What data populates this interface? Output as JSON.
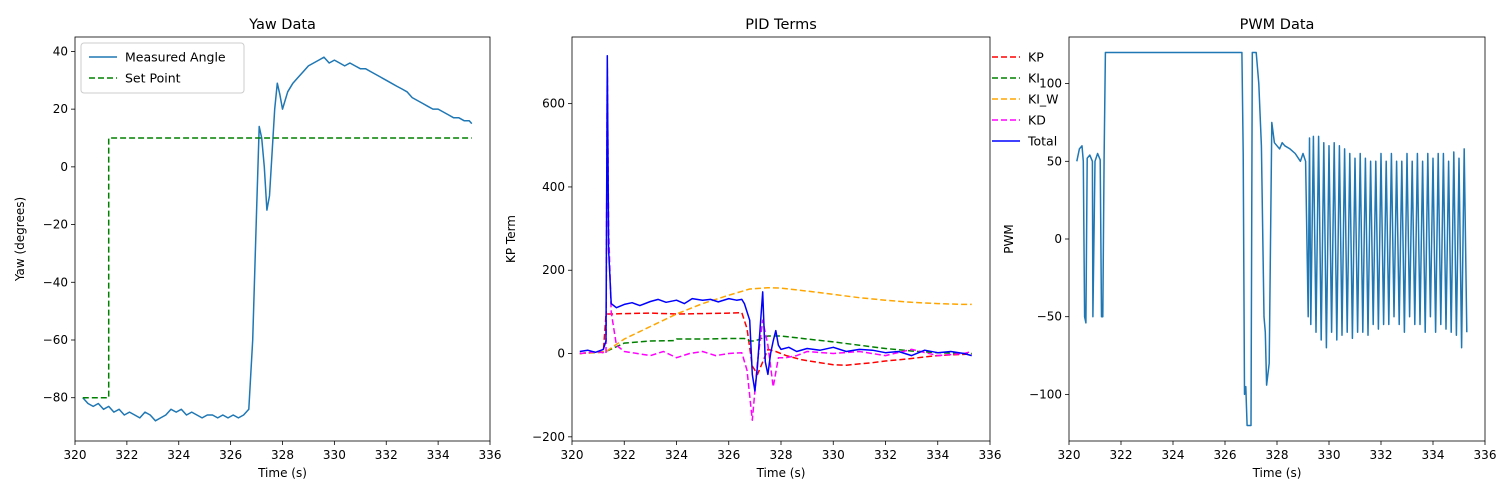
{
  "chart_data": [
    {
      "type": "line",
      "title": "Yaw Data",
      "xlabel": "Time (s)",
      "ylabel": "Yaw (degrees)",
      "xlim": [
        320,
        336
      ],
      "ylim": [
        -95,
        45
      ],
      "xticks": [
        320,
        322,
        324,
        326,
        328,
        330,
        332,
        334,
        336
      ],
      "yticks": [
        -80,
        -60,
        -40,
        -20,
        0,
        20,
        40
      ],
      "grid": false,
      "legend": "upper-left",
      "series": [
        {
          "name": "Measured Angle",
          "color": "#1f77b4",
          "dash": "",
          "x": [
            320.3,
            320.5,
            320.7,
            320.9,
            321.1,
            321.3,
            321.5,
            321.7,
            321.9,
            322.1,
            322.3,
            322.5,
            322.7,
            322.9,
            323.1,
            323.3,
            323.5,
            323.7,
            323.9,
            324.1,
            324.3,
            324.5,
            324.7,
            324.9,
            325.1,
            325.3,
            325.5,
            325.7,
            325.9,
            326.1,
            326.3,
            326.5,
            326.7,
            326.85,
            327.0,
            327.1,
            327.2,
            327.3,
            327.4,
            327.5,
            327.6,
            327.7,
            327.8,
            327.9,
            328.0,
            328.2,
            328.4,
            328.6,
            328.8,
            329.0,
            329.2,
            329.4,
            329.6,
            329.8,
            330.0,
            330.2,
            330.4,
            330.6,
            330.8,
            331.0,
            331.2,
            331.4,
            331.6,
            331.8,
            332.0,
            332.2,
            332.4,
            332.6,
            332.8,
            333.0,
            333.2,
            333.4,
            333.6,
            333.8,
            334.0,
            334.2,
            334.4,
            334.6,
            334.8,
            335.0,
            335.2,
            335.3
          ],
          "y": [
            -80,
            -82,
            -83,
            -82,
            -84,
            -83,
            -85,
            -84,
            -86,
            -85,
            -86,
            -87,
            -85,
            -86,
            -88,
            -87,
            -86,
            -84,
            -85,
            -84,
            -86,
            -85,
            -86,
            -87,
            -86,
            -86,
            -87,
            -86,
            -87,
            -86,
            -87,
            -86,
            -84,
            -60,
            -15,
            14,
            10,
            0,
            -15,
            -10,
            5,
            20,
            29,
            25,
            20,
            26,
            29,
            31,
            33,
            35,
            36,
            37,
            38,
            36,
            37,
            36,
            35,
            36,
            35,
            34,
            34,
            33,
            32,
            31,
            30,
            29,
            28,
            27,
            26,
            24,
            23,
            22,
            21,
            20,
            20,
            19,
            18,
            17,
            17,
            16,
            16,
            15
          ]
        },
        {
          "name": "Set Point",
          "color": "#008000",
          "dash": "6,3",
          "x": [
            320.3,
            321.3,
            321.3,
            335.3
          ],
          "y": [
            -80,
            -80,
            10,
            10
          ]
        }
      ]
    },
    {
      "type": "line",
      "title": "PID Terms",
      "xlabel": "Time (s)",
      "ylabel": "KP Term",
      "xlim": [
        320,
        336
      ],
      "ylim": [
        -210,
        760
      ],
      "xticks": [
        320,
        322,
        324,
        326,
        328,
        330,
        332,
        334,
        336
      ],
      "yticks": [
        -200,
        0,
        200,
        400,
        600
      ],
      "grid": false,
      "legend": "upper-right",
      "series": [
        {
          "name": "KP",
          "color": "#ff0000",
          "dash": "6,3",
          "x": [
            320.3,
            320.8,
            321.2,
            321.3,
            321.5,
            322.0,
            323.0,
            324.0,
            325.0,
            326.0,
            326.5,
            326.7,
            326.9,
            327.1,
            327.3,
            327.5,
            327.8,
            328.2,
            328.8,
            329.5,
            330.0,
            330.5,
            331.0,
            331.5,
            332.0,
            332.5,
            333.0,
            333.5,
            334.0,
            334.5,
            335.0,
            335.3
          ],
          "y": [
            0,
            2,
            3,
            95,
            95,
            96,
            97,
            95,
            96,
            97,
            98,
            60,
            -30,
            -50,
            -20,
            10,
            5,
            -5,
            -15,
            -22,
            -27,
            -28,
            -25,
            -22,
            -18,
            -15,
            -12,
            -8,
            -5,
            -3,
            -2,
            -1
          ]
        },
        {
          "name": "KI",
          "color": "#008000",
          "dash": "6,3",
          "x": [
            320.3,
            321.3,
            322.0,
            323.0,
            323.9,
            324.0,
            325.0,
            326.0,
            326.6,
            326.8,
            327.0,
            327.5,
            328.0,
            329.0,
            330.0,
            331.0,
            332.0,
            333.0,
            334.0,
            335.0,
            335.3
          ],
          "y": [
            0,
            5,
            25,
            30,
            31,
            35,
            35,
            36,
            36,
            30,
            30,
            42,
            42,
            35,
            28,
            20,
            12,
            6,
            2,
            0,
            0
          ]
        },
        {
          "name": "KI_W",
          "color": "#ffa500",
          "dash": "6,3",
          "x": [
            320.3,
            321.3,
            322.0,
            323.0,
            324.0,
            325.0,
            326.0,
            326.8,
            327.5,
            328.0,
            329.0,
            330.0,
            331.0,
            332.0,
            333.0,
            334.0,
            335.0,
            335.3
          ],
          "y": [
            0,
            5,
            35,
            65,
            95,
            120,
            140,
            155,
            158,
            157,
            150,
            142,
            134,
            128,
            123,
            120,
            118,
            118
          ]
        },
        {
          "name": "KD",
          "color": "#ff00ff",
          "dash": "6,3",
          "x": [
            320.3,
            321.0,
            321.3,
            321.35,
            321.4,
            321.5,
            321.7,
            322.0,
            322.5,
            323.0,
            323.5,
            324.0,
            324.5,
            325.0,
            325.5,
            326.0,
            326.5,
            326.7,
            326.9,
            327.1,
            327.3,
            327.5,
            327.7,
            327.9,
            328.2,
            328.6,
            329.0,
            330.0,
            331.0,
            332.0,
            333.0,
            334.0,
            335.0,
            335.3
          ],
          "y": [
            0,
            5,
            0,
            690,
            300,
            100,
            20,
            5,
            0,
            -5,
            5,
            -10,
            0,
            5,
            -5,
            0,
            2,
            -40,
            -160,
            -20,
            80,
            20,
            -80,
            -10,
            -10,
            -5,
            5,
            0,
            5,
            -5,
            10,
            -5,
            0,
            5
          ]
        },
        {
          "name": "Total",
          "color": "#0000ff",
          "dash": "",
          "x": [
            320.3,
            320.6,
            320.9,
            321.2,
            321.3,
            321.35,
            321.4,
            321.5,
            321.7,
            322.0,
            322.3,
            322.6,
            323.0,
            323.3,
            323.6,
            324.0,
            324.3,
            324.6,
            325.0,
            325.3,
            325.6,
            326.0,
            326.3,
            326.5,
            326.6,
            326.8,
            326.9,
            327.0,
            327.1,
            327.2,
            327.3,
            327.4,
            327.5,
            327.6,
            327.7,
            327.8,
            327.9,
            328.0,
            328.3,
            328.6,
            329.0,
            329.5,
            330.0,
            330.5,
            331.0,
            331.5,
            332.0,
            332.5,
            333.0,
            333.5,
            334.0,
            334.5,
            335.0,
            335.3
          ],
          "y": [
            5,
            8,
            3,
            10,
            30,
            715,
            250,
            120,
            110,
            118,
            122,
            115,
            125,
            130,
            123,
            128,
            120,
            132,
            128,
            130,
            124,
            132,
            128,
            130,
            120,
            80,
            -50,
            -90,
            -30,
            60,
            148,
            -20,
            -50,
            0,
            30,
            55,
            20,
            10,
            15,
            5,
            12,
            8,
            15,
            5,
            10,
            8,
            2,
            5,
            -5,
            8,
            2,
            5,
            0,
            -5
          ]
        }
      ]
    },
    {
      "type": "line",
      "title": "PWM Data",
      "xlabel": "Time (s)",
      "ylabel": "PWM",
      "xlim": [
        320,
        336
      ],
      "ylim": [
        -130,
        130
      ],
      "xticks": [
        320,
        322,
        324,
        326,
        328,
        330,
        332,
        334,
        336
      ],
      "yticks": [
        -100,
        -50,
        0,
        50,
        100
      ],
      "grid": false,
      "legend": "none",
      "series": [
        {
          "name": "",
          "color": "#1f77b4",
          "dash": "",
          "x": [
            320.3,
            320.4,
            320.5,
            320.55,
            320.6,
            320.65,
            320.7,
            320.8,
            320.9,
            320.92,
            321.0,
            321.1,
            321.2,
            321.25,
            321.3,
            321.35,
            321.4,
            326.6,
            326.65,
            326.7,
            326.75,
            326.8,
            326.85,
            326.9,
            327.0,
            327.05,
            327.1,
            327.2,
            327.3,
            327.4,
            327.5,
            327.55,
            327.6,
            327.7,
            327.8,
            327.9,
            328.0,
            328.1,
            328.2,
            328.3,
            328.5,
            328.7,
            328.9,
            329.0,
            329.1,
            329.2,
            329.25,
            329.3,
            329.4,
            329.5,
            329.6,
            329.7,
            329.8,
            329.9,
            330.0,
            330.1,
            330.2,
            330.3,
            330.4,
            330.5,
            330.6,
            330.7,
            330.8,
            330.9,
            331.0,
            331.1,
            331.2,
            331.3,
            331.4,
            331.5,
            331.6,
            331.7,
            331.8,
            331.9,
            332.0,
            332.1,
            332.2,
            332.3,
            332.4,
            332.5,
            332.6,
            332.7,
            332.8,
            332.9,
            333.0,
            333.1,
            333.2,
            333.3,
            333.4,
            333.5,
            333.6,
            333.7,
            333.8,
            333.9,
            334.0,
            334.1,
            334.2,
            334.3,
            334.4,
            334.5,
            334.6,
            334.7,
            334.8,
            334.9,
            335.0,
            335.1,
            335.2,
            335.3
          ],
          "y": [
            50,
            58,
            60,
            50,
            -50,
            -54,
            52,
            54,
            50,
            -50,
            50,
            55,
            51,
            -50,
            -50,
            52,
            120,
            120,
            120,
            55,
            -100,
            -95,
            -120,
            -120,
            -120,
            120,
            120,
            120,
            100,
            60,
            -50,
            -60,
            -94,
            -80,
            75,
            62,
            60,
            58,
            62,
            60,
            58,
            55,
            50,
            55,
            50,
            -50,
            65,
            -55,
            66,
            -60,
            66,
            -65,
            62,
            -70,
            60,
            -60,
            62,
            -65,
            60,
            -62,
            58,
            -60,
            55,
            -64,
            52,
            -60,
            55,
            -60,
            52,
            -62,
            50,
            -55,
            50,
            -58,
            55,
            -55,
            50,
            -55,
            55,
            -50,
            50,
            -55,
            50,
            -60,
            55,
            -50,
            50,
            -55,
            55,
            -55,
            50,
            -60,
            55,
            -50,
            52,
            -60,
            55,
            -55,
            55,
            -58,
            50,
            -60,
            56,
            -62,
            52,
            -70,
            58,
            -60
          ]
        }
      ]
    }
  ]
}
